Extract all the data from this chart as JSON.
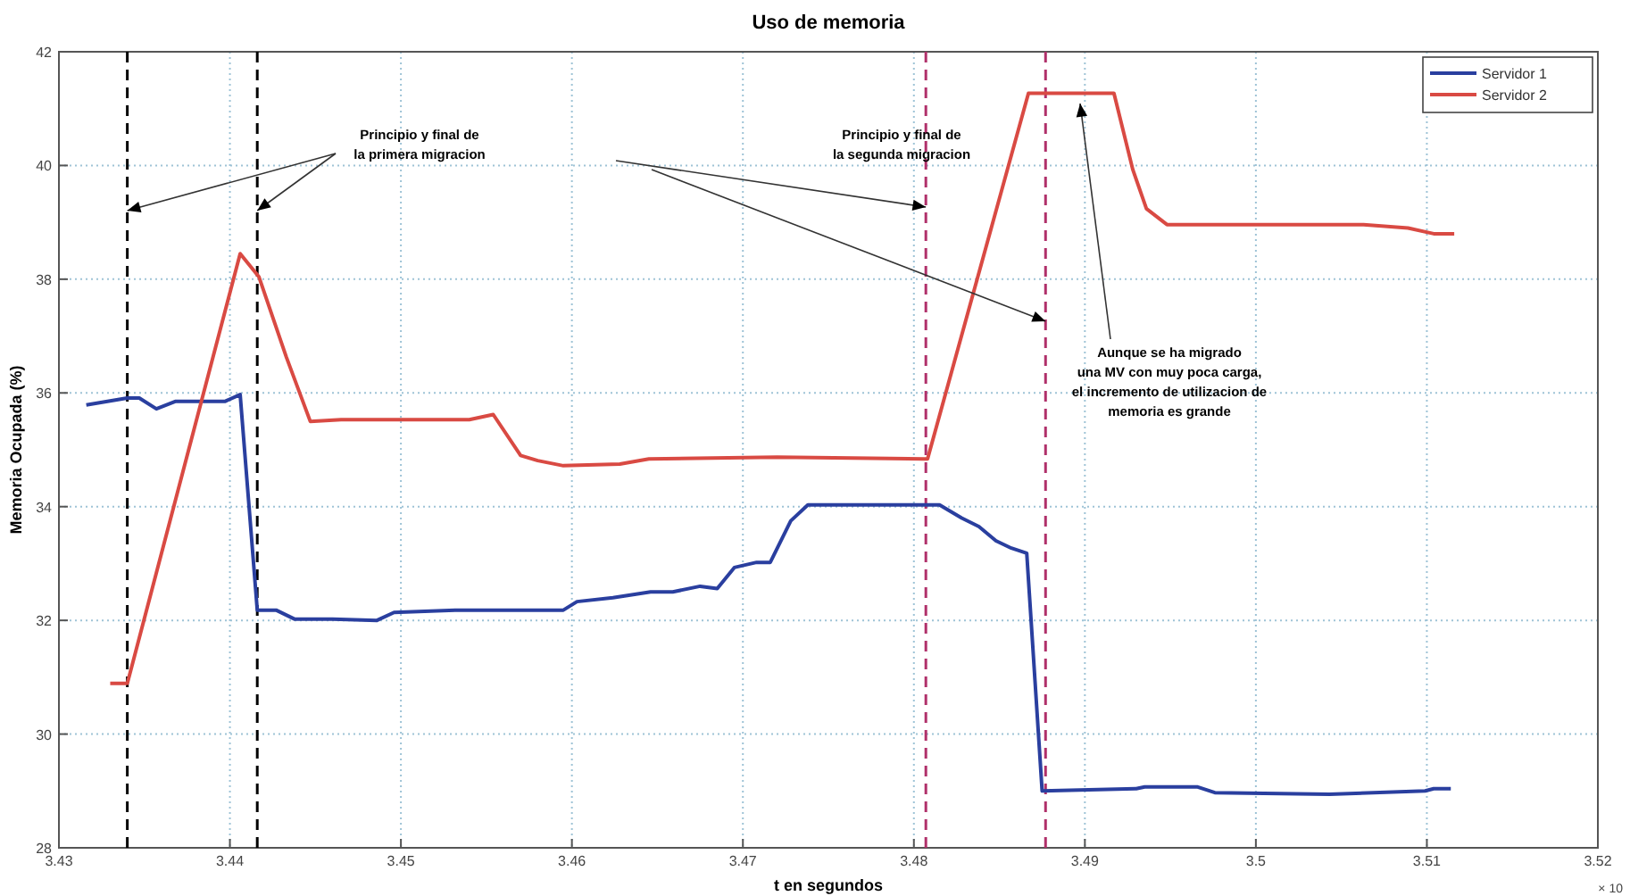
{
  "chart_data": {
    "type": "line",
    "title": "Uso de memoria",
    "xlabel": "t en segundos",
    "ylabel": "Memoria Ocupada (%)",
    "xlim": [
      3.43,
      3.52
    ],
    "xticks": [
      3.43,
      3.44,
      3.45,
      3.46,
      3.47,
      3.48,
      3.49,
      3.5,
      3.51,
      3.52
    ],
    "ylim": [
      28,
      42
    ],
    "yticks": [
      28,
      30,
      32,
      34,
      36,
      38,
      40,
      42
    ],
    "grid": true,
    "legend": "top right",
    "line_style": "solid",
    "series": [
      {
        "name": "Servidor 1",
        "color": "#2a3f9f",
        "x": [
          3.4316,
          3.434,
          3.4347,
          3.4357,
          3.4368,
          3.4397,
          3.4406,
          3.4416,
          3.4427,
          3.4438,
          3.446,
          3.4486,
          3.4496,
          3.4532,
          3.4595,
          3.4603,
          3.4624,
          3.4646,
          3.4659,
          3.4675,
          3.4685,
          3.4695,
          3.4708,
          3.4716,
          3.4728,
          3.4738,
          3.4797,
          3.4815,
          3.4828,
          3.4838,
          3.4848,
          3.4857,
          3.4866,
          3.4875,
          3.493,
          3.4935,
          3.4966,
          3.4976,
          3.5043,
          3.5099,
          3.5104,
          3.5114
        ],
        "values": [
          35.79,
          35.91,
          35.91,
          35.72,
          35.85,
          35.85,
          35.97,
          32.18,
          32.18,
          32.02,
          32.02,
          32.0,
          32.14,
          32.18,
          32.18,
          32.33,
          32.4,
          32.5,
          32.5,
          32.6,
          32.56,
          32.93,
          33.02,
          33.02,
          33.75,
          34.03,
          34.03,
          34.03,
          33.8,
          33.65,
          33.4,
          33.27,
          33.18,
          29.0,
          29.04,
          29.07,
          29.07,
          28.97,
          28.94,
          29.0,
          29.04,
          29.04
        ]
      },
      {
        "name": "Servidor 2",
        "color": "#d94a43",
        "x": [
          3.433,
          3.434,
          3.4406,
          3.4417,
          3.4433,
          3.4447,
          3.4465,
          3.454,
          3.4554,
          3.457,
          3.458,
          3.4595,
          3.4628,
          3.4645,
          3.472,
          3.4806,
          3.4808,
          3.4867,
          3.4917,
          3.4928,
          3.4936,
          3.4948,
          3.4981,
          3.5063,
          3.5089,
          3.5104,
          3.5116
        ],
        "values": [
          30.89,
          30.89,
          38.45,
          38.04,
          36.63,
          35.5,
          35.53,
          35.53,
          35.62,
          34.9,
          34.81,
          34.72,
          34.75,
          34.84,
          34.87,
          34.84,
          34.84,
          41.27,
          41.27,
          39.93,
          39.24,
          38.96,
          38.96,
          38.96,
          38.9,
          38.8,
          38.8
        ]
      }
    ],
    "ref_lines": [
      {
        "axis": "x",
        "value": 3.434,
        "color": "#000000",
        "line_style": "dashed"
      },
      {
        "axis": "x",
        "value": 3.4416,
        "color": "#000000",
        "line_style": "dashed"
      },
      {
        "axis": "x",
        "value": 3.4807,
        "color": "#b0306a",
        "line_style": "dashed"
      },
      {
        "axis": "x",
        "value": 3.4877,
        "color": "#b0306a",
        "line_style": "dashed"
      }
    ],
    "annotations": [
      "Principio y final de\nla primera migracion",
      "Principio y final de\nla segunda migracion",
      "Aunque se ha migrado\nuna MV con muy poca carga,\nel incremento de utilizacion de\nmemoria es grande",
      "× 10"
    ]
  }
}
